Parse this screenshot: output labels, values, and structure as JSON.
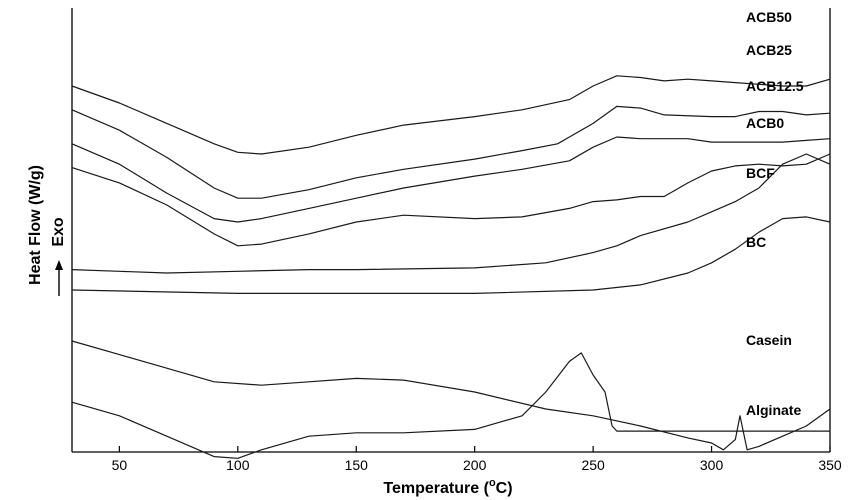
{
  "chart_data": {
    "type": "line",
    "title": "",
    "xlabel": "Temperature (°C)",
    "xlabel_parts": [
      "Temperature (",
      "o",
      "C)"
    ],
    "ylabel": "Heat Flow (W/g)",
    "ylabel_secondary": "Exo",
    "exo_arrow": "up",
    "xlim": [
      30,
      350
    ],
    "xticks": [
      50,
      100,
      150,
      200,
      250,
      300,
      350
    ],
    "y_ticks_shown": false,
    "grid": false,
    "legend": "labels placed at right end of each curve",
    "y_units": "relative heat flow (arbitrary offset, top = exo)",
    "series": [
      {
        "name": "ACB50",
        "x": [
          30,
          50,
          70,
          90,
          100,
          110,
          130,
          150,
          170,
          200,
          220,
          240,
          250,
          260,
          270,
          280,
          290,
          300,
          310,
          320,
          330,
          340,
          350
        ],
        "y": [
          95,
          90,
          84,
          78,
          75.5,
          75,
          77,
          80.5,
          83.5,
          86,
          88,
          91,
          95,
          98,
          97.5,
          96.5,
          97,
          96.5,
          96,
          95.5,
          95,
          95,
          97
        ]
      },
      {
        "name": "ACB25",
        "x": [
          30,
          50,
          70,
          90,
          100,
          110,
          130,
          150,
          170,
          200,
          220,
          235,
          240,
          250,
          260,
          270,
          280,
          300,
          310,
          320,
          330,
          340,
          350
        ],
        "y": [
          88,
          82,
          74,
          65,
          62,
          62,
          64.5,
          68,
          70.5,
          73.5,
          76,
          78,
          80,
          84,
          89,
          88.5,
          86.5,
          86,
          86,
          87.5,
          87.5,
          86.5,
          87
        ]
      },
      {
        "name": "ACB12.5",
        "x": [
          30,
          50,
          70,
          90,
          100,
          110,
          130,
          150,
          170,
          200,
          220,
          240,
          250,
          260,
          270,
          280,
          290,
          300,
          310,
          320,
          330,
          340,
          350
        ],
        "y": [
          78,
          72,
          63.5,
          56,
          55,
          56,
          59,
          62,
          65,
          68.5,
          70.5,
          73,
          77,
          80,
          79.5,
          79.5,
          79.5,
          78.5,
          78.5,
          78.5,
          78.5,
          79,
          79.5
        ]
      },
      {
        "name": "ACB0",
        "x": [
          30,
          50,
          70,
          90,
          100,
          110,
          130,
          150,
          170,
          200,
          220,
          240,
          250,
          260,
          270,
          280,
          290,
          300,
          310,
          320,
          330,
          340,
          350
        ],
        "y": [
          71,
          66.5,
          60,
          51.5,
          48,
          48.5,
          51.5,
          55,
          57,
          56,
          56.5,
          59,
          61,
          61.5,
          62.5,
          62.5,
          66.5,
          70,
          71.5,
          72,
          71.5,
          72,
          75
        ]
      },
      {
        "name": "BCF",
        "x": [
          30,
          50,
          70,
          100,
          130,
          150,
          200,
          230,
          250,
          260,
          270,
          290,
          300,
          310,
          320,
          330,
          340,
          350
        ],
        "y": [
          41,
          40.5,
          40,
          40.5,
          41,
          41,
          41.5,
          43,
          46,
          48,
          51,
          55,
          58,
          61,
          65,
          72,
          75,
          72
        ]
      },
      {
        "name": "BC",
        "x": [
          30,
          100,
          150,
          200,
          250,
          270,
          290,
          300,
          310,
          320,
          330,
          340,
          350
        ],
        "y": [
          35,
          34,
          34,
          34,
          35,
          36.5,
          40,
          43,
          47,
          52,
          56,
          56.5,
          55
        ]
      },
      {
        "name": "Casein",
        "x": [
          30,
          50,
          70,
          90,
          110,
          130,
          150,
          170,
          200,
          230,
          250,
          270,
          290,
          300,
          305,
          310,
          312,
          315,
          320,
          330,
          340,
          350
        ],
        "y": [
          20,
          16,
          12,
          8,
          7,
          8,
          9,
          8.5,
          5,
          0,
          -2,
          -5,
          -8.5,
          -10,
          -12,
          -9,
          -2,
          -12,
          -11,
          -8,
          -5,
          0
        ]
      },
      {
        "name": "Alginate",
        "x": [
          30,
          50,
          70,
          90,
          100,
          110,
          130,
          150,
          170,
          200,
          220,
          230,
          240,
          245,
          250,
          255,
          258,
          260,
          270,
          290,
          310,
          330,
          350
        ],
        "y": [
          2,
          -2,
          -8,
          -14,
          -14.5,
          -12,
          -8,
          -7,
          -7,
          -6,
          -2,
          5,
          14,
          16.5,
          10,
          5,
          -5,
          -6.5,
          -6.5,
          -6.5,
          -6.5,
          -6.5,
          -6.5
        ]
      }
    ]
  }
}
